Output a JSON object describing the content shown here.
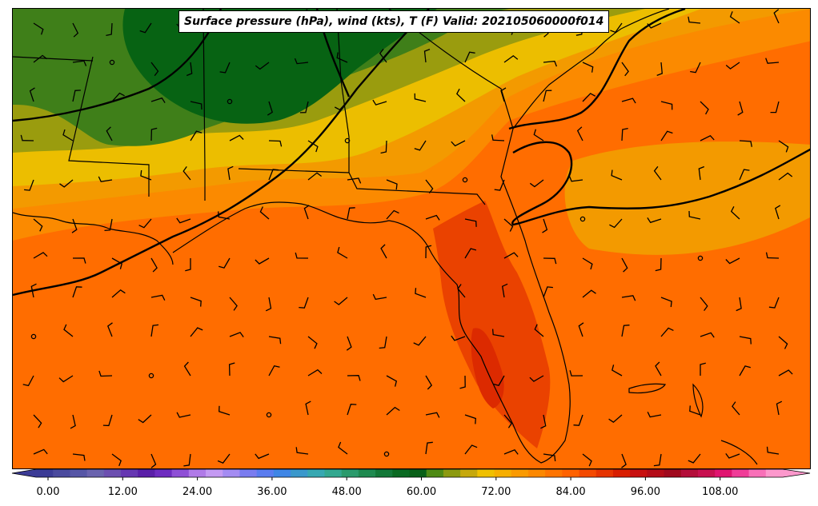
{
  "title": "Surface pressure (hPa), wind (kts), T (F) Valid: 202105060000f014",
  "colorbar": {
    "ticks": [
      "0.00",
      "12.00",
      "24.00",
      "36.00",
      "48.00",
      "60.00",
      "72.00",
      "84.00",
      "96.00",
      "108.00"
    ],
    "colors": [
      "#3b3b96",
      "#4a4a9e",
      "#5656a6",
      "#6a63ae",
      "#6c4fb0",
      "#6637b2",
      "#5a1fa8",
      "#6e2cc0",
      "#8e4fd6",
      "#b07ae8",
      "#c49af2",
      "#a48cf2",
      "#7a7cf0",
      "#5a7cf0",
      "#3f86e6",
      "#3a98cc",
      "#37a8b2",
      "#33a890",
      "#2b9a6c",
      "#1f8a50",
      "#137838",
      "#0a6a22",
      "#086018",
      "#4e8a14",
      "#8c9a10",
      "#c6a80c",
      "#f0c000",
      "#f6ae00",
      "#fa9a00",
      "#fc8800",
      "#fe7400",
      "#ff6200",
      "#f44a00",
      "#e63400",
      "#d81e00",
      "#c81010",
      "#b40c18",
      "#a00a1e",
      "#b40e3a",
      "#c81050",
      "#e01470",
      "#f03c98",
      "#f870b8",
      "#fc98cc"
    ]
  },
  "colors": {
    "dark_green": "#076313",
    "green": "#3f7f19",
    "olive": "#9a9c0e",
    "yellow": "#ecbe00",
    "light_orange": "#f39a00",
    "orange": "#fb8a00",
    "dark_orange": "#ff6d00",
    "red_orange": "#ea4200",
    "red": "#dc2a00"
  }
}
